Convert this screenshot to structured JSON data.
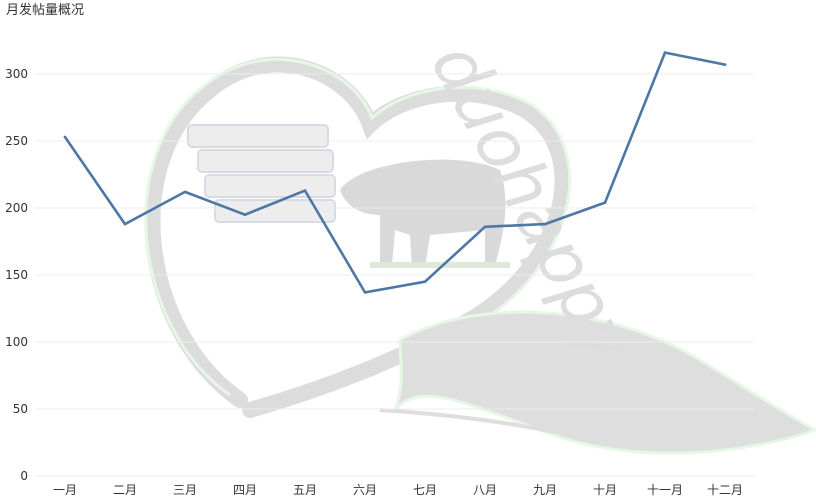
{
  "title": "月发帖量概况",
  "watermark": {
    "text": "duohappy",
    "fill_color": "#dddddd",
    "outline_color": "#e6f7e6"
  },
  "colors": {
    "series": "#4d77a5",
    "grid": "#ececec",
    "text": "#333333"
  },
  "chart_data": {
    "type": "line",
    "categories": [
      "一月",
      "二月",
      "三月",
      "四月",
      "五月",
      "六月",
      "七月",
      "八月",
      "九月",
      "十月",
      "十一月",
      "十二月"
    ],
    "values": [
      253,
      188,
      212,
      195,
      213,
      137,
      145,
      186,
      188,
      204,
      316,
      307
    ],
    "title": "月发帖量概况",
    "xlabel": "",
    "ylabel": "",
    "ylim": [
      0,
      330
    ],
    "yticks": [
      0,
      50,
      100,
      150,
      200,
      250,
      300
    ],
    "grid": true,
    "legend": "none"
  }
}
